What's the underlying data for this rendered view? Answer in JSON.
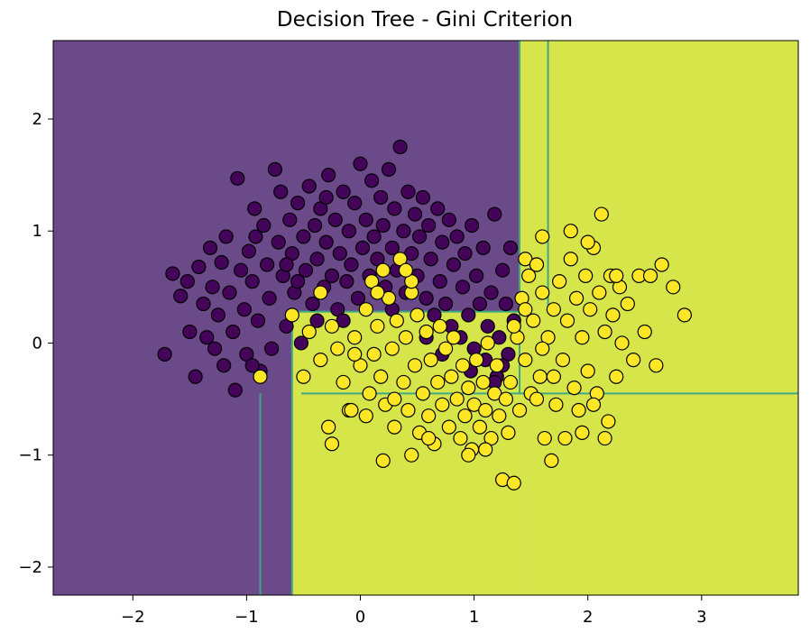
{
  "chart_data": {
    "type": "scatter",
    "title": "Decision Tree - Gini Criterion",
    "xlabel": "",
    "ylabel": "",
    "xlim": [
      -2.7,
      3.85
    ],
    "ylim": [
      -2.25,
      2.7
    ],
    "grid": false,
    "x_ticks": [
      -2,
      -1,
      0,
      1,
      2,
      3
    ],
    "y_ticks": [
      -2,
      -1,
      0,
      1,
      2
    ],
    "x_tick_labels": [
      "−2",
      "−1",
      "0",
      "1",
      "2",
      "3"
    ],
    "y_tick_labels": [
      "−2",
      "−1",
      "0",
      "1",
      "2"
    ],
    "colors": {
      "region_class_0": "#6b4a89",
      "region_class_1": "#d6e64a",
      "boundary": "#3fa887",
      "class_0_point": "#44045a",
      "class_1_point": "#fde725",
      "point_edge": "#000000"
    },
    "decision_regions": [
      {
        "class": 0,
        "x": [
          -2.7,
          1.4
        ],
        "y": [
          -2.25,
          2.7
        ]
      },
      {
        "class": 1,
        "x": [
          1.4,
          3.85
        ],
        "y": [
          -2.25,
          2.7
        ]
      },
      {
        "class": 1,
        "x": [
          -0.6,
          1.4
        ],
        "y": [
          -2.25,
          0.28
        ]
      },
      {
        "class": 0,
        "x": [
          -0.52,
          1.4
        ],
        "y": [
          -0.45,
          -0.45
        ]
      }
    ],
    "boundaries": [
      {
        "type": "vertical",
        "x": 1.4,
        "y": [
          -0.45,
          2.7
        ]
      },
      {
        "type": "vertical",
        "x": 1.65,
        "y": [
          0.32,
          2.7
        ]
      },
      {
        "type": "vertical",
        "x": -0.88,
        "y": [
          -2.25,
          -0.45
        ]
      },
      {
        "type": "vertical",
        "x": -0.6,
        "y": [
          -2.25,
          0.28
        ]
      },
      {
        "type": "horizontal",
        "y": -0.45,
        "x": [
          -0.52,
          3.85
        ]
      },
      {
        "type": "horizontal",
        "y": 0.28,
        "x": [
          -0.6,
          1.4
        ]
      }
    ],
    "series": [
      {
        "class": 0,
        "points": [
          [
            -1.72,
            -0.1
          ],
          [
            -1.65,
            0.62
          ],
          [
            -1.58,
            0.42
          ],
          [
            -1.52,
            0.55
          ],
          [
            -1.5,
            0.1
          ],
          [
            -1.45,
            -0.3
          ],
          [
            -1.42,
            0.68
          ],
          [
            -1.38,
            0.35
          ],
          [
            -1.35,
            0.05
          ],
          [
            -1.32,
            0.85
          ],
          [
            -1.3,
            0.5
          ],
          [
            -1.28,
            -0.05
          ],
          [
            -1.25,
            0.25
          ],
          [
            -1.22,
            0.72
          ],
          [
            -1.2,
            -0.2
          ],
          [
            -1.18,
            0.95
          ],
          [
            -1.15,
            0.45
          ],
          [
            -1.12,
            0.1
          ],
          [
            -1.1,
            -0.42
          ],
          [
            -1.08,
            1.47
          ],
          [
            -1.05,
            0.65
          ],
          [
            -1.02,
            0.3
          ],
          [
            -1.0,
            -0.1
          ],
          [
            -0.98,
            0.82
          ],
          [
            -0.95,
            0.55
          ],
          [
            -0.93,
            1.2
          ],
          [
            -0.9,
            0.2
          ],
          [
            -0.88,
            -0.25
          ],
          [
            -0.85,
            1.05
          ],
          [
            -0.82,
            0.7
          ],
          [
            -0.8,
            0.4
          ],
          [
            -0.78,
            -0.05
          ],
          [
            -0.75,
            1.55
          ],
          [
            -0.72,
            0.9
          ],
          [
            -0.7,
            1.35
          ],
          [
            -0.68,
            0.6
          ],
          [
            -0.65,
            0.15
          ],
          [
            -0.62,
            1.1
          ],
          [
            -0.6,
            0.8
          ],
          [
            -0.58,
            0.45
          ],
          [
            -0.55,
            1.25
          ],
          [
            -0.52,
            0.0
          ],
          [
            -0.5,
            0.95
          ],
          [
            -0.48,
            0.65
          ],
          [
            -0.45,
            1.4
          ],
          [
            -0.42,
            0.35
          ],
          [
            -0.4,
            1.05
          ],
          [
            -0.38,
            0.75
          ],
          [
            -0.35,
            1.2
          ],
          [
            -0.32,
            0.5
          ],
          [
            -0.3,
            0.9
          ],
          [
            -0.28,
            1.5
          ],
          [
            -0.25,
            0.6
          ],
          [
            -0.22,
            1.1
          ],
          [
            -0.2,
            0.3
          ],
          [
            -0.18,
            0.8
          ],
          [
            -0.15,
            1.35
          ],
          [
            -0.12,
            0.55
          ],
          [
            -0.1,
            1.0
          ],
          [
            -0.08,
            0.7
          ],
          [
            -0.05,
            1.25
          ],
          [
            -0.02,
            0.4
          ],
          [
            0.0,
            1.6
          ],
          [
            0.02,
            0.85
          ],
          [
            0.05,
            1.1
          ],
          [
            0.08,
            0.6
          ],
          [
            0.1,
            1.45
          ],
          [
            0.12,
            0.95
          ],
          [
            0.15,
            0.75
          ],
          [
            0.18,
            1.3
          ],
          [
            0.2,
            1.05
          ],
          [
            0.22,
            0.5
          ],
          [
            0.25,
            1.55
          ],
          [
            0.28,
            0.85
          ],
          [
            0.3,
            1.2
          ],
          [
            0.32,
            0.65
          ],
          [
            0.35,
            1.75
          ],
          [
            0.38,
            1.0
          ],
          [
            0.4,
            0.45
          ],
          [
            0.42,
            1.35
          ],
          [
            0.45,
            0.8
          ],
          [
            0.48,
            1.15
          ],
          [
            0.5,
            0.6
          ],
          [
            0.52,
            0.95
          ],
          [
            0.55,
            1.3
          ],
          [
            0.58,
            0.4
          ],
          [
            0.6,
            1.05
          ],
          [
            0.62,
            0.75
          ],
          [
            0.65,
            0.25
          ],
          [
            0.68,
            1.2
          ],
          [
            0.7,
            0.55
          ],
          [
            0.72,
            0.9
          ],
          [
            0.75,
            0.35
          ],
          [
            0.78,
            1.1
          ],
          [
            0.8,
            0.15
          ],
          [
            0.82,
            0.7
          ],
          [
            0.85,
            0.95
          ],
          [
            0.88,
            0.05
          ],
          [
            0.9,
            0.5
          ],
          [
            0.92,
            0.8
          ],
          [
            0.95,
            0.25
          ],
          [
            0.98,
            1.05
          ],
          [
            1.0,
            -0.05
          ],
          [
            1.02,
            0.6
          ],
          [
            1.05,
            0.35
          ],
          [
            1.08,
            0.85
          ],
          [
            1.1,
            -0.15
          ],
          [
            1.12,
            0.15
          ],
          [
            1.15,
            0.45
          ],
          [
            1.18,
            1.15
          ],
          [
            1.2,
            -0.3
          ],
          [
            1.22,
            0.05
          ],
          [
            1.25,
            0.65
          ],
          [
            1.28,
            0.35
          ],
          [
            1.3,
            -0.1
          ],
          [
            1.32,
            0.85
          ],
          [
            1.35,
            0.2
          ],
          [
            0.97,
            -0.25
          ],
          [
            1.18,
            -0.35
          ],
          [
            1.25,
            -0.2
          ],
          [
            -0.95,
            -0.2
          ],
          [
            -0.92,
            0.95
          ],
          [
            -0.65,
            0.7
          ],
          [
            -0.38,
            0.2
          ],
          [
            -0.15,
            0.2
          ],
          [
            0.28,
            0.3
          ],
          [
            0.58,
            0.05
          ],
          [
            0.72,
            -0.1
          ],
          [
            -0.55,
            0.55
          ],
          [
            -0.3,
            1.3
          ]
        ]
      },
      {
        "class": 1,
        "points": [
          [
            -0.35,
            0.45
          ],
          [
            -0.25,
            0.15
          ],
          [
            -0.2,
            -0.05
          ],
          [
            -0.15,
            -0.35
          ],
          [
            -0.1,
            -0.6
          ],
          [
            -0.05,
            0.05
          ],
          [
            0.0,
            -0.2
          ],
          [
            0.05,
            0.3
          ],
          [
            0.08,
            -0.45
          ],
          [
            0.1,
            0.55
          ],
          [
            0.12,
            -0.1
          ],
          [
            0.15,
            0.15
          ],
          [
            0.18,
            -0.3
          ],
          [
            0.2,
            0.65
          ],
          [
            0.22,
            -0.55
          ],
          [
            0.25,
            0.4
          ],
          [
            0.28,
            -0.05
          ],
          [
            0.3,
            -0.75
          ],
          [
            0.32,
            0.2
          ],
          [
            0.35,
            0.75
          ],
          [
            0.38,
            -0.35
          ],
          [
            0.4,
            0.05
          ],
          [
            0.42,
            -0.6
          ],
          [
            0.45,
            0.45
          ],
          [
            0.48,
            -0.2
          ],
          [
            0.5,
            0.25
          ],
          [
            0.52,
            -0.8
          ],
          [
            0.55,
            -0.45
          ],
          [
            0.58,
            0.1
          ],
          [
            0.6,
            -0.65
          ],
          [
            0.62,
            -0.15
          ],
          [
            0.65,
            -0.9
          ],
          [
            0.68,
            -0.35
          ],
          [
            0.7,
            0.15
          ],
          [
            0.72,
            -0.55
          ],
          [
            0.75,
            -0.05
          ],
          [
            0.78,
            -0.75
          ],
          [
            0.8,
            -0.3
          ],
          [
            0.82,
            0.05
          ],
          [
            0.85,
            -0.5
          ],
          [
            0.88,
            -0.85
          ],
          [
            0.9,
            -0.2
          ],
          [
            0.92,
            -0.65
          ],
          [
            0.95,
            -0.4
          ],
          [
            0.98,
            -0.95
          ],
          [
            1.0,
            -0.55
          ],
          [
            1.02,
            -0.15
          ],
          [
            1.05,
            -0.75
          ],
          [
            1.08,
            -0.35
          ],
          [
            1.1,
            -0.6
          ],
          [
            1.12,
            0.0
          ],
          [
            1.15,
            -0.85
          ],
          [
            1.18,
            -0.45
          ],
          [
            1.2,
            -0.2
          ],
          [
            1.22,
            -0.65
          ],
          [
            1.25,
            -1.22
          ],
          [
            1.28,
            -0.5
          ],
          [
            1.3,
            -0.8
          ],
          [
            1.32,
            -0.35
          ],
          [
            1.35,
            -1.25
          ],
          [
            1.38,
            0.05
          ],
          [
            1.4,
            -0.6
          ],
          [
            1.42,
            0.4
          ],
          [
            1.45,
            -0.15
          ],
          [
            1.48,
            0.6
          ],
          [
            1.5,
            -0.45
          ],
          [
            1.52,
            0.2
          ],
          [
            1.55,
            0.7
          ],
          [
            1.58,
            -0.3
          ],
          [
            1.6,
            0.45
          ],
          [
            1.62,
            -0.85
          ],
          [
            1.65,
            0.05
          ],
          [
            1.68,
            -1.05
          ],
          [
            1.7,
            0.3
          ],
          [
            1.72,
            -0.55
          ],
          [
            1.75,
            0.55
          ],
          [
            1.78,
            -0.15
          ],
          [
            1.8,
            -0.85
          ],
          [
            1.82,
            0.2
          ],
          [
            1.85,
            0.75
          ],
          [
            1.88,
            -0.4
          ],
          [
            1.9,
            0.4
          ],
          [
            1.92,
            -0.6
          ],
          [
            1.95,
            0.05
          ],
          [
            1.98,
            0.6
          ],
          [
            2.0,
            -0.25
          ],
          [
            2.02,
            0.3
          ],
          [
            2.05,
            0.85
          ],
          [
            2.08,
            -0.45
          ],
          [
            2.1,
            0.45
          ],
          [
            2.12,
            1.15
          ],
          [
            2.15,
            0.1
          ],
          [
            2.18,
            -0.7
          ],
          [
            2.2,
            0.6
          ],
          [
            2.22,
            0.25
          ],
          [
            2.25,
            -0.3
          ],
          [
            2.28,
            0.5
          ],
          [
            2.3,
            0.0
          ],
          [
            2.35,
            0.35
          ],
          [
            2.4,
            -0.15
          ],
          [
            2.45,
            0.6
          ],
          [
            2.5,
            0.1
          ],
          [
            2.55,
            0.6
          ],
          [
            2.6,
            -0.2
          ],
          [
            2.65,
            0.7
          ],
          [
            2.75,
            0.5
          ],
          [
            2.85,
            0.25
          ],
          [
            1.85,
            1.0
          ],
          [
            1.6,
            0.95
          ],
          [
            1.45,
            0.75
          ],
          [
            1.55,
            0.7
          ],
          [
            2.0,
            0.9
          ],
          [
            2.25,
            0.6
          ],
          [
            0.2,
            -1.05
          ],
          [
            0.45,
            -1.0
          ],
          [
            -0.28,
            -0.75
          ],
          [
            -0.25,
            -0.9
          ],
          [
            -0.08,
            -0.6
          ],
          [
            -0.5,
            -0.3
          ],
          [
            -0.35,
            -0.15
          ],
          [
            1.1,
            -0.95
          ],
          [
            0.95,
            -1.0
          ],
          [
            0.6,
            -0.85
          ],
          [
            0.3,
            -0.5
          ],
          [
            0.05,
            -0.65
          ],
          [
            1.55,
            -0.5
          ],
          [
            1.7,
            -0.3
          ],
          [
            2.05,
            -0.55
          ],
          [
            2.15,
            -0.85
          ],
          [
            1.95,
            -0.8
          ],
          [
            -0.88,
            -0.3
          ],
          [
            -0.6,
            0.25
          ],
          [
            -0.45,
            0.1
          ],
          [
            0.45,
            0.55
          ],
          [
            0.4,
            0.65
          ],
          [
            0.15,
            0.45
          ],
          [
            -0.05,
            -0.1
          ],
          [
            1.35,
            0.15
          ],
          [
            1.45,
            0.3
          ],
          [
            1.6,
            -0.05
          ]
        ]
      }
    ]
  }
}
